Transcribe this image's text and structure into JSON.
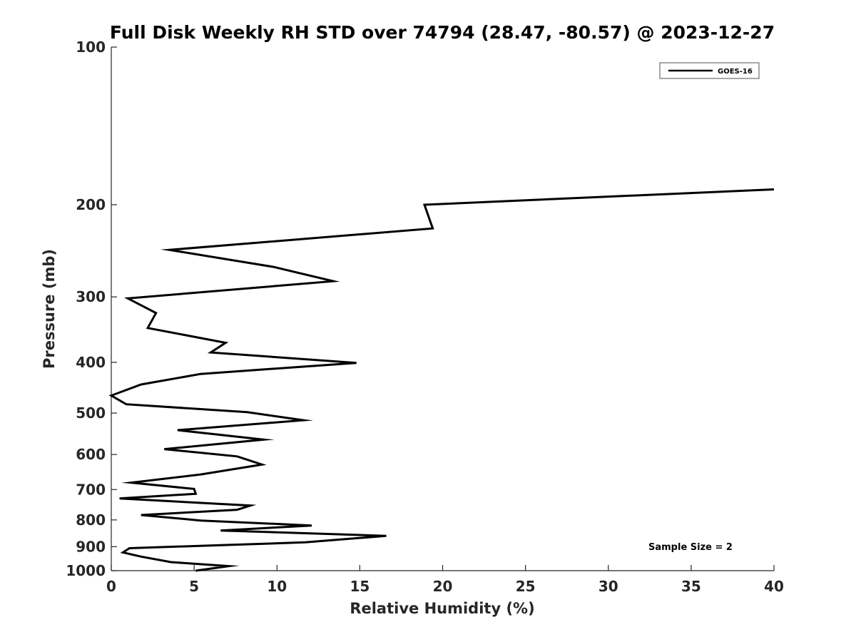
{
  "chart_data": {
    "type": "line",
    "title": "Full Disk Weekly RH STD over 74794 (28.47, -80.57) @ 2023-12-27",
    "xlabel": "Relative Humidity (%)",
    "ylabel": "Pressure (mb)",
    "xlim": [
      0,
      40
    ],
    "ylim": [
      100,
      1000
    ],
    "yscale": "log",
    "yreversed": true,
    "x_ticks": [
      "0",
      "5",
      "10",
      "15",
      "20",
      "25",
      "30",
      "35",
      "40"
    ],
    "y_ticks": [
      "100",
      "200",
      "300",
      "400",
      "500",
      "600",
      "700",
      "800",
      "900",
      "1000"
    ],
    "grid": false,
    "legend_position": "top-right",
    "series": [
      {
        "name": "GOES-16",
        "color": "#000000",
        "points": [
          [
            40.0,
            187
          ],
          [
            18.9,
            200
          ],
          [
            19.4,
            222
          ],
          [
            3.5,
            244
          ],
          [
            9.8,
            263
          ],
          [
            13.4,
            280
          ],
          [
            1.0,
            302
          ],
          [
            2.7,
            322
          ],
          [
            2.2,
            344
          ],
          [
            6.9,
            367
          ],
          [
            6.0,
            383
          ],
          [
            14.8,
            401
          ],
          [
            5.4,
            421
          ],
          [
            1.8,
            441
          ],
          [
            0.0,
            463
          ],
          [
            0.9,
            481
          ],
          [
            8.2,
            498
          ],
          [
            11.6,
            516
          ],
          [
            4.0,
            539
          ],
          [
            9.2,
            562
          ],
          [
            3.2,
            586
          ],
          [
            7.6,
            605
          ],
          [
            9.1,
            627
          ],
          [
            5.4,
            655
          ],
          [
            1.2,
            679
          ],
          [
            5.0,
            698
          ],
          [
            5.1,
            713
          ],
          [
            0.5,
            728
          ],
          [
            8.4,
            751
          ],
          [
            7.6,
            765
          ],
          [
            1.8,
            783
          ],
          [
            5.4,
            802
          ],
          [
            12.1,
            820
          ],
          [
            6.6,
            838
          ],
          [
            16.6,
            858
          ],
          [
            11.7,
            883
          ],
          [
            1.1,
            906
          ],
          [
            0.7,
            923
          ],
          [
            1.8,
            940
          ],
          [
            3.6,
            963
          ],
          [
            7.1,
            980
          ],
          [
            5.1,
            1000
          ]
        ]
      }
    ],
    "annotations": [
      "Sample Size = 2"
    ]
  }
}
